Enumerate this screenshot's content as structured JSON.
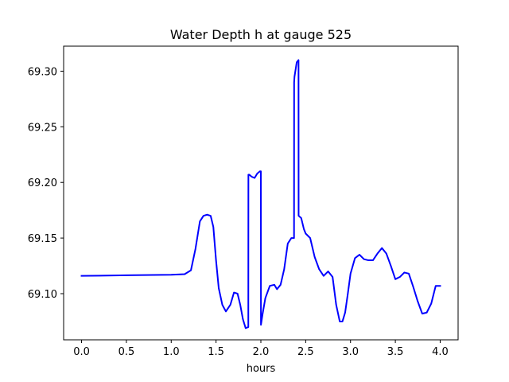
{
  "chart_data": {
    "type": "line",
    "title": "Water Depth h at gauge 525",
    "xlabel": "hours",
    "ylabel": "",
    "xlim": [
      -0.2,
      4.2
    ],
    "ylim": [
      69.0585,
      69.3225
    ],
    "x_ticks": [
      0.0,
      0.5,
      1.0,
      1.5,
      2.0,
      2.5,
      3.0,
      3.5,
      4.0
    ],
    "x_tick_labels": [
      "0.0",
      "0.5",
      "1.0",
      "1.5",
      "2.0",
      "2.5",
      "3.0",
      "3.5",
      "4.0"
    ],
    "y_ticks": [
      69.1,
      69.15,
      69.2,
      69.25,
      69.3
    ],
    "y_tick_labels": [
      "69.10",
      "69.15",
      "69.20",
      "69.25",
      "69.30"
    ],
    "grid": false,
    "legend": "none",
    "series": [
      {
        "color": "#0000ff",
        "x": [
          0.0,
          0.5,
          1.0,
          1.15,
          1.22,
          1.27,
          1.32,
          1.36,
          1.4,
          1.44,
          1.47,
          1.5,
          1.53,
          1.57,
          1.61,
          1.66,
          1.7,
          1.74,
          1.77,
          1.8,
          1.83,
          1.86,
          1.861,
          1.87,
          1.9,
          1.93,
          1.96,
          1.99,
          2.0,
          2.001,
          2.02,
          2.05,
          2.1,
          2.15,
          2.18,
          2.22,
          2.26,
          2.3,
          2.34,
          2.37,
          2.371,
          2.375,
          2.4,
          2.42,
          2.421,
          2.45,
          2.48,
          2.5,
          2.55,
          2.6,
          2.65,
          2.7,
          2.75,
          2.8,
          2.84,
          2.88,
          2.91,
          2.94,
          2.97,
          3.0,
          3.05,
          3.1,
          3.15,
          3.2,
          3.25,
          3.3,
          3.35,
          3.4,
          3.45,
          3.5,
          3.55,
          3.6,
          3.65,
          3.7,
          3.75,
          3.8,
          3.85,
          3.9,
          3.95,
          4.0
        ],
        "y": [
          69.116,
          69.1165,
          69.117,
          69.1175,
          69.121,
          69.14,
          69.165,
          69.17,
          69.171,
          69.17,
          69.16,
          69.13,
          69.105,
          69.09,
          69.084,
          69.09,
          69.101,
          69.1,
          69.09,
          69.077,
          69.069,
          69.07,
          69.207,
          69.207,
          69.205,
          69.204,
          69.208,
          69.21,
          69.21,
          69.072,
          69.082,
          69.096,
          69.107,
          69.108,
          69.104,
          69.108,
          69.122,
          69.145,
          69.15,
          69.15,
          69.29,
          69.295,
          69.308,
          69.31,
          69.17,
          69.168,
          69.158,
          69.154,
          69.15,
          69.133,
          69.122,
          69.116,
          69.12,
          69.115,
          69.09,
          69.075,
          69.075,
          69.083,
          69.1,
          69.118,
          69.132,
          69.135,
          69.131,
          69.13,
          69.13,
          69.136,
          69.141,
          69.136,
          69.125,
          69.113,
          69.115,
          69.119,
          69.118,
          69.106,
          69.093,
          69.082,
          69.083,
          69.091,
          69.107,
          69.107
        ]
      }
    ]
  }
}
